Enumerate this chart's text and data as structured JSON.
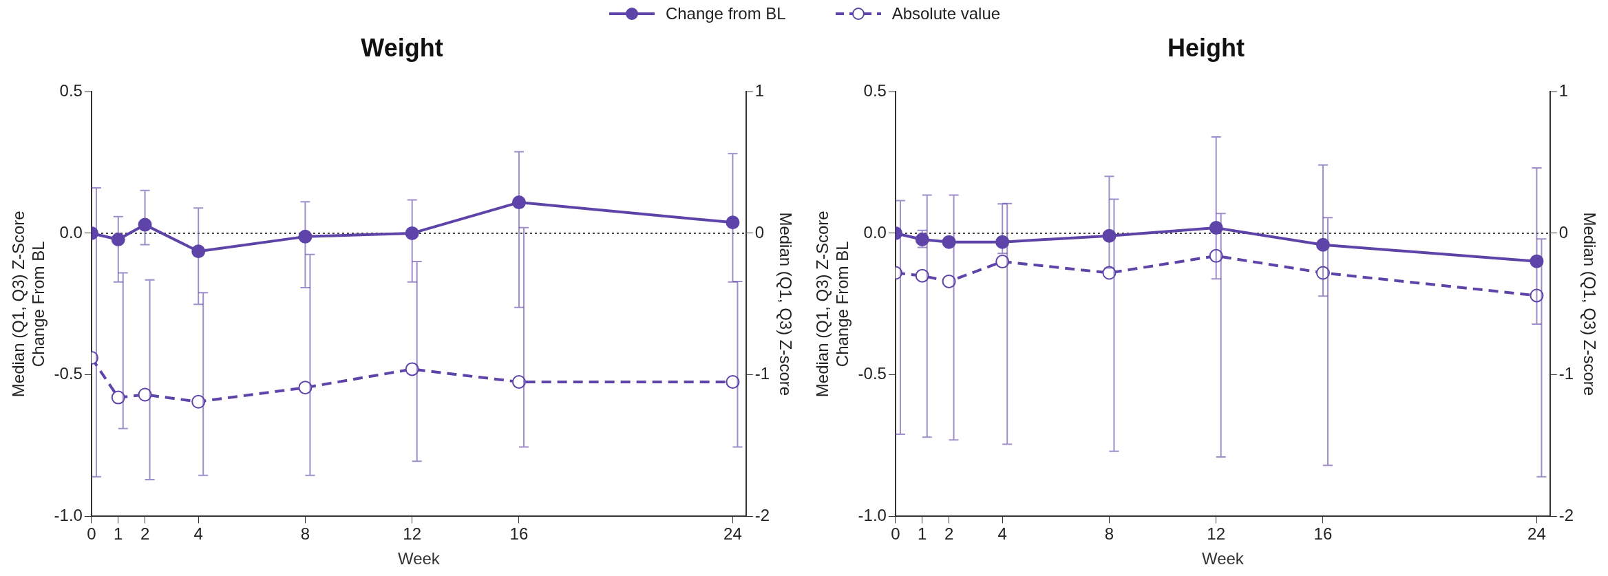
{
  "chart_data": [
    {
      "type": "line",
      "title": "Weight",
      "xlabel": "Week",
      "ylabel": "Median (Q1, Q3) Z-Score\nChange From BL",
      "y2label": "Median (Q1, Q3) Z-score",
      "x": [
        0,
        1,
        2,
        4,
        8,
        12,
        16,
        24
      ],
      "xlim": [
        0,
        24.5
      ],
      "xticks": [
        0,
        1,
        2,
        4,
        8,
        12,
        16,
        24
      ],
      "ylim": [
        -1,
        0.5
      ],
      "yticks": [
        {
          "value": -1,
          "label": "-1.0"
        },
        {
          "value": -0.5,
          "label": "-0.5"
        },
        {
          "value": 0,
          "label": "0.0"
        },
        {
          "value": 0.5,
          "label": "0.5"
        }
      ],
      "y2lim": [
        -2,
        1
      ],
      "y2ticks": [
        -2,
        -1,
        0,
        1
      ],
      "grid": false,
      "legend": "top",
      "marker": "circle",
      "series": [
        {
          "name": "Change from BL",
          "color": "#5e44a8",
          "line_style": "solid",
          "values": [
            0,
            -0.022,
            0.03,
            -0.064,
            -0.012,
            0,
            0.109,
            0.038
          ],
          "errors": [
            null,
            [
              -0.172,
              0.059
            ],
            [
              -0.04,
              0.151
            ],
            [
              -0.251,
              0.089
            ],
            [
              -0.192,
              0.111
            ],
            [
              -0.172,
              0.118
            ],
            [
              -0.262,
              0.288
            ],
            [
              -0.172,
              0.281
            ]
          ]
        },
        {
          "name": "Absolute value",
          "color": "#5e44a8",
          "line_style": "dashed",
          "axis": "y2",
          "values": [
            -0.88,
            -1.16,
            -1.14,
            -1.19,
            -1.09,
            -0.96,
            -1.05,
            -1.05
          ],
          "errors": [
            [
              -1.72,
              0.32
            ],
            [
              -1.38,
              -0.28
            ],
            [
              -1.74,
              -0.33
            ],
            [
              -1.71,
              -0.42
            ],
            [
              -1.71,
              -0.15
            ],
            [
              -1.61,
              -0.2
            ],
            [
              -1.51,
              0.04
            ],
            [
              -1.51,
              -0.34
            ]
          ]
        }
      ],
      "ref_lines": [
        {
          "axis": "y",
          "value": 0,
          "color": "#000000",
          "line_style": "dotted"
        }
      ]
    },
    {
      "type": "line",
      "title": "Height",
      "xlabel": "Week",
      "ylabel": "Median (Q1, Q3) Z-Score\nChange From BL",
      "y2label": "Median (Q1, Q3) Z-score",
      "x": [
        0,
        1,
        2,
        4,
        8,
        12,
        16,
        24
      ],
      "xlim": [
        0,
        24.5
      ],
      "xticks": [
        0,
        1,
        2,
        4,
        8,
        12,
        16,
        24
      ],
      "ylim": [
        -1,
        0.5
      ],
      "yticks": [
        {
          "value": -1,
          "label": "-1.0"
        },
        {
          "value": -0.5,
          "label": "-0.5"
        },
        {
          "value": 0,
          "label": "0.0"
        },
        {
          "value": 0.5,
          "label": "0.5"
        }
      ],
      "y2lim": [
        -2,
        1
      ],
      "y2ticks": [
        -2,
        -1,
        0,
        1
      ],
      "grid": false,
      "marker": "circle",
      "series": [
        {
          "color": "#5e44a8",
          "line_style": "solid",
          "values": [
            0,
            -0.022,
            -0.031,
            -0.031,
            -0.009,
            0.019,
            -0.041,
            -0.099
          ],
          "errors": [
            null,
            [
              -0.05,
              0.01
            ],
            null,
            [
              -0.071,
              0.104
            ],
            [
              -0.123,
              0.201
            ],
            [
              -0.161,
              0.34
            ],
            [
              -0.222,
              0.241
            ],
            [
              -0.321,
              0.231
            ]
          ]
        },
        {
          "color": "#5e44a8",
          "line_style": "dashed",
          "axis": "y2",
          "values": [
            -0.28,
            -0.3,
            -0.34,
            -0.2,
            -0.28,
            -0.16,
            -0.28,
            -0.44
          ],
          "errors": [
            [
              -1.42,
              0.23
            ],
            [
              -1.44,
              0.27
            ],
            [
              -1.46,
              0.27
            ],
            [
              -1.49,
              0.21
            ],
            [
              -1.54,
              0.24
            ],
            [
              -1.58,
              0.14
            ],
            [
              -1.64,
              0.11
            ],
            [
              -1.72,
              -0.04
            ]
          ]
        }
      ],
      "ref_lines": [
        {
          "axis": "y",
          "value": 0,
          "color": "#000000",
          "line_style": "dotted"
        }
      ]
    }
  ]
}
